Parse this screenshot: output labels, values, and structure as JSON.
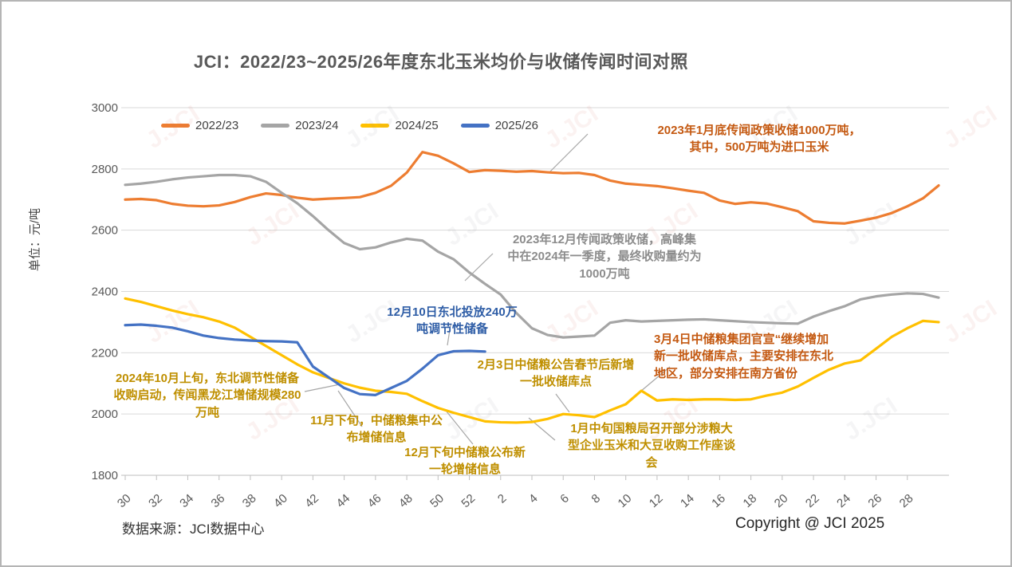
{
  "page": {
    "source_note": "数据来源：JCI数据中心",
    "copyright": "Copyright @ JCI 2025",
    "watermark_text": "J.JCI"
  },
  "chart_data": {
    "type": "line",
    "title": "JCI：2022/23~2025/26年度东北玉米均价与收储传闻时间对照",
    "ylabel": "单位：元/吨",
    "ylim": [
      1800,
      3000
    ],
    "y_ticks": [
      3000,
      2800,
      2600,
      2400,
      2200,
      2000,
      1800
    ],
    "x_unit": "周（week of year，自第30周起）",
    "x_tick_labels": [
      "30",
      "32",
      "34",
      "36",
      "38",
      "40",
      "42",
      "44",
      "46",
      "48",
      "50",
      "52",
      "2",
      "4",
      "6",
      "8",
      "10",
      "12",
      "14",
      "16",
      "18",
      "20",
      "22",
      "24",
      "26",
      "28"
    ],
    "grid": "horizontal",
    "legend_position": "top-left",
    "series": [
      {
        "name": "2022/23",
        "color": "#ED7D31",
        "values": [
          2700,
          2702,
          2698,
          2686,
          2680,
          2678,
          2681,
          2692,
          2708,
          2720,
          2715,
          2706,
          2700,
          2703,
          2705,
          2708,
          2722,
          2745,
          2788,
          2855,
          2843,
          2818,
          2790,
          2796,
          2794,
          2791,
          2793,
          2789,
          2786,
          2787,
          2780,
          2762,
          2752,
          2748,
          2744,
          2737,
          2729,
          2722,
          2697,
          2686,
          2691,
          2687,
          2675,
          2662,
          2629,
          2624,
          2622,
          2631,
          2641,
          2656,
          2678,
          2704,
          2746
        ]
      },
      {
        "name": "2023/24",
        "color": "#A5A5A5",
        "values": [
          2748,
          2752,
          2758,
          2766,
          2772,
          2776,
          2780,
          2780,
          2776,
          2758,
          2722,
          2688,
          2646,
          2600,
          2558,
          2538,
          2544,
          2560,
          2572,
          2566,
          2530,
          2505,
          2462,
          2425,
          2390,
          2330,
          2280,
          2258,
          2250,
          2253,
          2256,
          2298,
          2306,
          2302,
          2304,
          2306,
          2308,
          2309,
          2306,
          2303,
          2300,
          2298,
          2296,
          2295,
          2318,
          2336,
          2352,
          2374,
          2384,
          2390,
          2394,
          2392,
          2380
        ]
      },
      {
        "name": "2024/25",
        "color": "#FFC000",
        "values": [
          2377,
          2366,
          2352,
          2338,
          2326,
          2316,
          2302,
          2282,
          2252,
          2222,
          2192,
          2162,
          2136,
          2118,
          2100,
          2086,
          2076,
          2072,
          2066,
          2042,
          2020,
          2004,
          1990,
          1976,
          1973,
          1972,
          1974,
          1984,
          2000,
          1996,
          1990,
          2012,
          2032,
          2076,
          2044,
          2048,
          2046,
          2048,
          2048,
          2046,
          2048,
          2060,
          2070,
          2090,
          2118,
          2145,
          2165,
          2175,
          2213,
          2252,
          2280,
          2304,
          2300
        ]
      },
      {
        "name": "2025/26",
        "color": "#4472C4",
        "values": [
          2290,
          2292,
          2288,
          2282,
          2270,
          2256,
          2248,
          2243,
          2240,
          2238,
          2237,
          2234,
          2155,
          2120,
          2085,
          2065,
          2062,
          2085,
          2108,
          2148,
          2192,
          2205,
          2206,
          2204
        ]
      }
    ]
  },
  "annotations": [
    {
      "id": "storage-rumor-jan-2023",
      "color": "#C45911",
      "text": "2023年1月底传闻政策收储1000万吨，\n其中，500万吨为进口玉米"
    },
    {
      "id": "storage-rumor-dec-2023",
      "color": "#8C8C8C",
      "text": "2023年12月传闻政策收储，高峰集\n中在2024年一季度，最终收购量约为\n1000万吨"
    },
    {
      "id": "release-dec-10",
      "color": "#2E5DA6",
      "text": "12月10日东北投放240万\n吨调节性储备"
    },
    {
      "id": "reserve-oct-2024",
      "color": "#BF8F00",
      "text": "2024年10月上旬，东北调节性储备\n收购启动，传闻黑龙江增储规模280\n万吨"
    },
    {
      "id": "reserve-late-nov",
      "color": "#BF8F00",
      "text": "11月下旬，中储粮集中公\n布增储信息"
    },
    {
      "id": "reserve-late-dec",
      "color": "#BF8F00",
      "text": "12月下旬中储粮公布新\n一轮增储信息"
    },
    {
      "id": "meeting-mid-jan",
      "color": "#BF8F00",
      "text": "1月中旬国粮局召开部分涉粮大\n型企业玉米和大豆收购工作座谈\n会"
    },
    {
      "id": "sinograin-feb-3",
      "color": "#BF8F00",
      "text": "2月3日中储粮公告春节后新增\n一批收储库点"
    },
    {
      "id": "sinograin-mar-4",
      "color": "#C45911",
      "text": "3月4日中储粮集团官宣“继续增加\n新一批收储库点，主要安排在东北\n地区，部分安排在南方省份"
    }
  ]
}
